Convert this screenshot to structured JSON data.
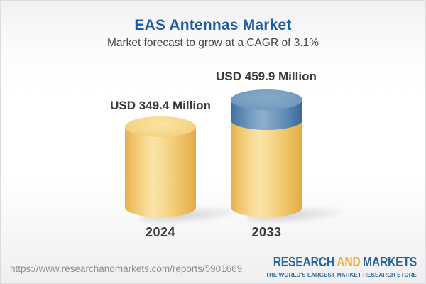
{
  "header": {
    "title": "EAS Antennas Market",
    "subtitle": "Market forecast to grow at a CAGR of 3.1%"
  },
  "chart_data": {
    "type": "bar",
    "style": "3d-cylinder",
    "title": "EAS Antennas Market",
    "subtitle": "Market forecast to grow at a CAGR of 3.1%",
    "categories": [
      "2024",
      "2033"
    ],
    "values": [
      349.4,
      459.9
    ],
    "unit": "USD Million",
    "value_labels": [
      "USD 349.4 Million",
      "USD 459.9 Million"
    ],
    "cagr_percent": 3.1,
    "growth_segment_note": "2033 bar shows growth above 2024 level as blue top segment",
    "colors": {
      "base_segment": "#F3CF7C",
      "growth_segment": "#5E8CB5"
    },
    "legend": "none",
    "axes": "none",
    "grid": false
  },
  "footer": {
    "url": "https://www.researchandmarkets.com/reports/5901669",
    "logo": {
      "word1": "RESEARCH",
      "word2": "AND",
      "word3": "MARKETS",
      "tagline": "THE WORLD'S LARGEST MARKET RESEARCH STORE"
    }
  },
  "colors": {
    "title_blue": "#1D5CA2",
    "subtitle_gray": "#454545",
    "label_dark": "#3A3A3A",
    "url_gray": "#8F8F8F",
    "logo_blue": "#27659E",
    "logo_orange": "#F3B02C"
  }
}
